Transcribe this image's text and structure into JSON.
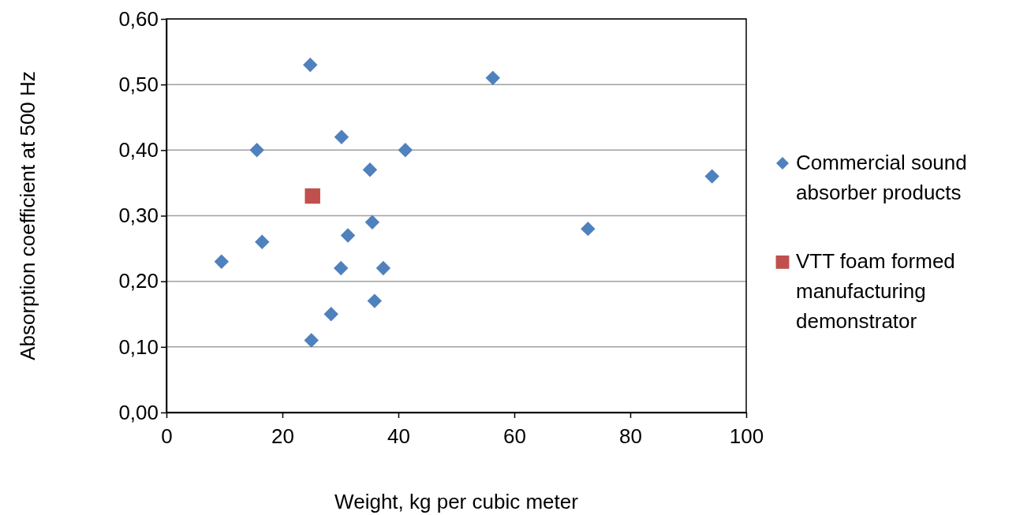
{
  "chart_data": {
    "type": "scatter",
    "xlabel": "Weight, kg per cubic meter",
    "ylabel": "Absorption coefficient at 500 Hz",
    "xlim": [
      0,
      100
    ],
    "xticks": [
      0,
      20,
      40,
      60,
      80,
      100
    ],
    "ylim": [
      0,
      0.6
    ],
    "yticks": [
      {
        "value": 0,
        "label": "0,00"
      },
      {
        "value": 0.1,
        "label": "0,10"
      },
      {
        "value": 0.2,
        "label": "0,20"
      },
      {
        "value": 0.3,
        "label": "0,30"
      },
      {
        "value": 0.4,
        "label": "0,40"
      },
      {
        "value": 0.5,
        "label": "0,50"
      },
      {
        "value": 0.6,
        "label": "0,60"
      }
    ],
    "grid": "y",
    "legend": "right",
    "series": [
      {
        "name": "Commercial sound absorber products",
        "color": "#4f81bd",
        "marker": "diamond",
        "x": [
          24.8,
          56.3,
          30.2,
          15.6,
          41.2,
          35.1,
          94.1,
          35.5,
          72.7,
          31.3,
          16.5,
          9.5,
          30.1,
          37.4,
          35.9,
          28.4,
          25.0
        ],
        "values": [
          0.53,
          0.51,
          0.42,
          0.4,
          0.4,
          0.37,
          0.36,
          0.29,
          0.28,
          0.27,
          0.26,
          0.23,
          0.22,
          0.22,
          0.17,
          0.15,
          0.11
        ]
      },
      {
        "name": "VTT foam formed manufacturing demonstrator",
        "color": "#c0504d",
        "marker": "square",
        "x": [
          25.2
        ],
        "values": [
          0.33
        ]
      }
    ]
  }
}
